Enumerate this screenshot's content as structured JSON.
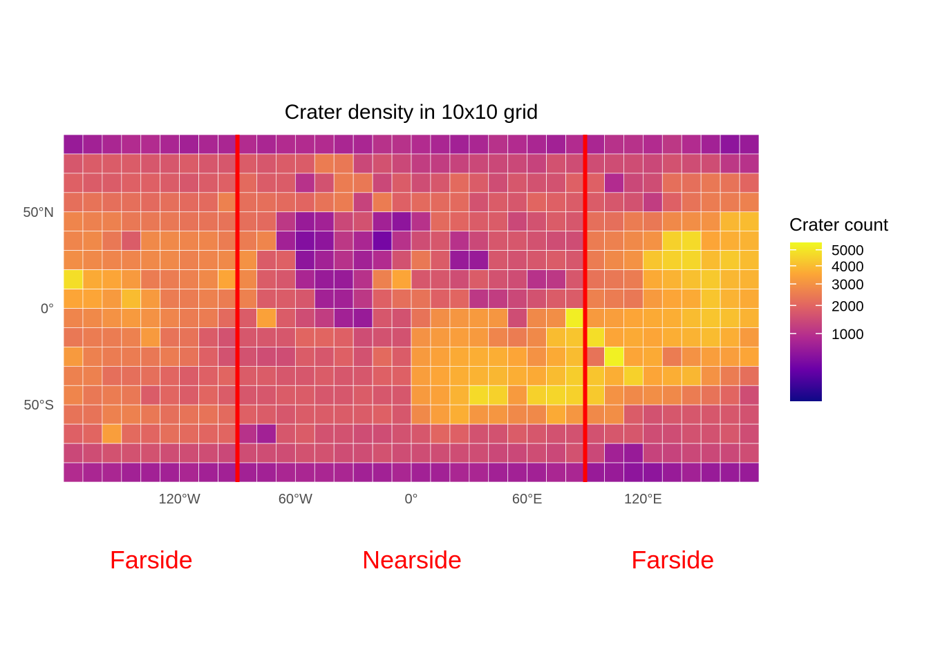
{
  "chart_data": {
    "type": "heatmap",
    "title": "Crater density in 10x10 grid",
    "xlabel": "",
    "ylabel": "",
    "xlim": [
      -180,
      180
    ],
    "ylim": [
      -90,
      90
    ],
    "cell_size_deg": 10,
    "lon_bins_start": -180,
    "lat_bins_top": 90,
    "x_ticks": [
      {
        "value": -120,
        "label": "120°W"
      },
      {
        "value": -60,
        "label": "60°W"
      },
      {
        "value": 0,
        "label": "0°"
      },
      {
        "value": 60,
        "label": "60°E"
      },
      {
        "value": 120,
        "label": "120°E"
      }
    ],
    "y_ticks": [
      {
        "value": 50,
        "label": "50°N"
      },
      {
        "value": 0,
        "label": "0°"
      },
      {
        "value": -50,
        "label": "50°S"
      }
    ],
    "legend": {
      "title": "Crater count",
      "scale": "sqrt",
      "range": [
        0,
        5500
      ],
      "breaks": [
        {
          "value": 5000,
          "label": "5000"
        },
        {
          "value": 4000,
          "label": "4000"
        },
        {
          "value": 3000,
          "label": "3000"
        },
        {
          "value": 2000,
          "label": "2000"
        },
        {
          "value": 1000,
          "label": "1000"
        }
      ],
      "placement": "right"
    },
    "reference_lines": [
      {
        "lon": -90,
        "color": "#ff0000"
      },
      {
        "lon": 90,
        "color": "#ff0000"
      }
    ],
    "region_labels": [
      {
        "text": "Farside",
        "lon": -135
      },
      {
        "text": "Nearside",
        "lon": 0
      },
      {
        "text": "Farside",
        "lon": 135
      }
    ],
    "palette": [
      "#0d0887",
      "#6a00a8",
      "#b12a90",
      "#e16462",
      "#fca636",
      "#f0f921"
    ],
    "rows_lat_desc": [
      [
        600,
        700,
        800,
        900,
        900,
        800,
        700,
        800,
        800,
        900,
        800,
        900,
        900,
        900,
        800,
        800,
        1000,
        1000,
        900,
        800,
        700,
        800,
        1000,
        900,
        800,
        700,
        900,
        800,
        1000,
        1000,
        900,
        1100,
        900,
        700,
        500,
        600
      ],
      [
        1700,
        1800,
        1800,
        1800,
        1700,
        1700,
        1800,
        1700,
        1700,
        1800,
        1700,
        1800,
        1800,
        2500,
        2400,
        1400,
        1600,
        1400,
        1200,
        1200,
        1300,
        1400,
        1400,
        1400,
        1300,
        1600,
        1500,
        1500,
        1500,
        1500,
        1400,
        1600,
        1500,
        1500,
        1100,
        1000
      ],
      [
        1900,
        1800,
        1800,
        1900,
        1900,
        1800,
        1700,
        1800,
        1900,
        2100,
        1800,
        1800,
        1000,
        1600,
        2500,
        2400,
        1400,
        1800,
        1500,
        1700,
        2100,
        1800,
        1500,
        1700,
        1600,
        1600,
        1900,
        1900,
        900,
        1400,
        1500,
        2200,
        2200,
        2400,
        2300,
        2000
      ],
      [
        2200,
        2300,
        2200,
        2200,
        2100,
        2200,
        2100,
        2100,
        2600,
        2200,
        2200,
        2100,
        2000,
        2300,
        2500,
        1300,
        2500,
        1900,
        2100,
        2100,
        2100,
        1600,
        1800,
        1700,
        2000,
        1900,
        1800,
        1800,
        1700,
        1600,
        1200,
        1900,
        2300,
        2500,
        2500,
        2600
      ],
      [
        2700,
        2600,
        2600,
        2400,
        2400,
        2400,
        2300,
        2300,
        2300,
        2200,
        2100,
        1100,
        600,
        700,
        1400,
        1600,
        700,
        500,
        1000,
        2100,
        2000,
        1800,
        1800,
        1400,
        1600,
        1800,
        1700,
        2200,
        2200,
        2500,
        2400,
        2800,
        2900,
        3000,
        3900,
        4000
      ],
      [
        2700,
        2800,
        2400,
        1800,
        2800,
        2800,
        2700,
        2700,
        2500,
        2500,
        2700,
        700,
        400,
        500,
        1100,
        800,
        300,
        1000,
        1500,
        1700,
        1000,
        1400,
        1700,
        1700,
        1600,
        1500,
        1500,
        2500,
        2600,
        2800,
        3000,
        4500,
        4700,
        3500,
        3700,
        3800
      ],
      [
        2900,
        2800,
        2700,
        2700,
        2800,
        2800,
        2600,
        2700,
        2800,
        3000,
        1800,
        1900,
        500,
        700,
        1000,
        700,
        900,
        1600,
        2400,
        1800,
        600,
        600,
        1700,
        1600,
        1700,
        1800,
        1700,
        2500,
        2800,
        3000,
        4200,
        4500,
        4600,
        4000,
        4300,
        4000
      ],
      [
        4800,
        3600,
        3500,
        3200,
        2500,
        2500,
        2600,
        2800,
        3500,
        2800,
        1800,
        1700,
        800,
        600,
        600,
        1000,
        2600,
        3500,
        1700,
        1700,
        1500,
        1800,
        1600,
        1500,
        1000,
        1100,
        1700,
        2300,
        2400,
        2500,
        3600,
        3800,
        4100,
        4300,
        3900,
        3800
      ],
      [
        3500,
        3500,
        3200,
        4000,
        3200,
        2500,
        2500,
        2600,
        2500,
        2600,
        1800,
        1800,
        1700,
        700,
        700,
        1100,
        1900,
        2200,
        2300,
        1900,
        2000,
        1100,
        1200,
        1400,
        1600,
        1800,
        1800,
        2600,
        2500,
        2400,
        3200,
        3500,
        3600,
        4200,
        3800,
        3600
      ],
      [
        2700,
        2800,
        3000,
        3200,
        3000,
        2700,
        2500,
        2500,
        2100,
        1800,
        3400,
        1800,
        1500,
        1200,
        700,
        600,
        1700,
        1600,
        2300,
        2900,
        3100,
        3200,
        3100,
        1500,
        2800,
        2900,
        5200,
        3200,
        3300,
        3500,
        3600,
        3700,
        4000,
        4200,
        4100,
        3800
      ],
      [
        2400,
        2500,
        2500,
        2600,
        3200,
        2300,
        2300,
        1800,
        1600,
        1700,
        1700,
        1700,
        2000,
        2000,
        1900,
        1500,
        1600,
        1600,
        3000,
        3200,
        3300,
        3200,
        2700,
        2500,
        2800,
        4000,
        4200,
        4800,
        3500,
        3600,
        3500,
        3700,
        3800,
        4000,
        3700,
        3200
      ],
      [
        3200,
        2600,
        2500,
        2500,
        2400,
        2500,
        2300,
        1900,
        1600,
        1600,
        1500,
        1500,
        1800,
        1700,
        1900,
        1600,
        2100,
        1800,
        3200,
        3400,
        3600,
        3700,
        3700,
        3500,
        3000,
        3600,
        4000,
        2300,
        5300,
        3500,
        3600,
        2500,
        3000,
        3300,
        3300,
        3500
      ],
      [
        2600,
        2600,
        2200,
        2200,
        2200,
        2000,
        1800,
        1900,
        2000,
        1800,
        1800,
        1700,
        1700,
        1800,
        1700,
        1700,
        1900,
        1900,
        3300,
        3500,
        3700,
        3800,
        3900,
        3700,
        3600,
        4000,
        4400,
        4200,
        3700,
        4500,
        3500,
        3700,
        3900,
        3000,
        2500,
        2200
      ],
      [
        2700,
        2400,
        2500,
        2400,
        1800,
        2000,
        1800,
        2000,
        1800,
        1700,
        1700,
        1800,
        1800,
        1700,
        1700,
        1800,
        1700,
        1700,
        3200,
        3400,
        3800,
        4700,
        4500,
        3200,
        4500,
        4600,
        4500,
        4300,
        3000,
        2800,
        2900,
        2800,
        2500,
        2300,
        2000,
        1500
      ],
      [
        2300,
        2300,
        2600,
        2600,
        2400,
        2200,
        2300,
        2300,
        2100,
        1900,
        1800,
        1700,
        1800,
        1800,
        1800,
        1800,
        1900,
        1700,
        2800,
        3300,
        3700,
        3100,
        3100,
        2800,
        2800,
        3600,
        3100,
        2800,
        2900,
        1800,
        1600,
        1700,
        1700,
        1700,
        1700,
        1600
      ],
      [
        1900,
        2000,
        3300,
        2100,
        2000,
        2200,
        2100,
        2000,
        2000,
        1000,
        700,
        1700,
        1800,
        1600,
        1600,
        1500,
        1500,
        1600,
        1700,
        2000,
        1900,
        1600,
        1600,
        1800,
        1700,
        1600,
        1600,
        1600,
        1700,
        1700,
        1500,
        1500,
        1600,
        1600,
        1700,
        1500
      ],
      [
        1400,
        1500,
        1600,
        1600,
        1600,
        1500,
        1500,
        1500,
        1400,
        1500,
        1500,
        1500,
        1600,
        1600,
        1500,
        1500,
        1600,
        1500,
        1500,
        1500,
        1500,
        1500,
        1400,
        1400,
        1500,
        1400,
        1600,
        1400,
        700,
        600,
        1300,
        1300,
        1400,
        1400,
        1400,
        1500
      ],
      [
        900,
        800,
        800,
        700,
        700,
        700,
        800,
        700,
        700,
        700,
        700,
        800,
        800,
        800,
        800,
        700,
        700,
        800,
        700,
        700,
        800,
        800,
        700,
        700,
        700,
        800,
        800,
        600,
        600,
        500,
        500,
        600,
        700,
        600,
        600,
        600
      ]
    ]
  }
}
